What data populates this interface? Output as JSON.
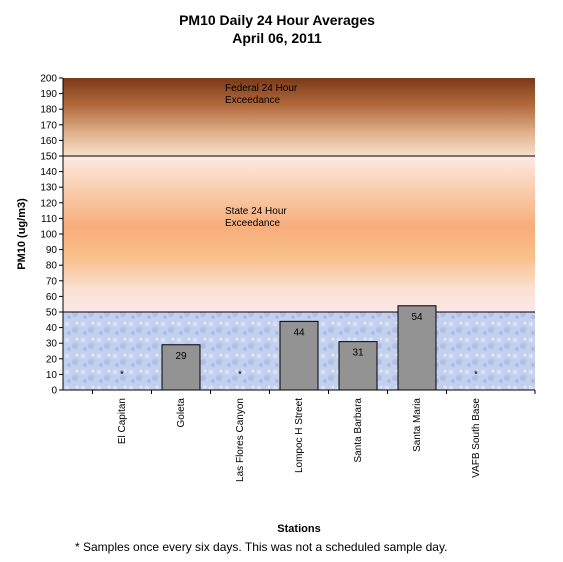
{
  "chart_data": {
    "type": "bar",
    "title": "PM10 Daily 24 Hour Averages",
    "subtitle": "April 06, 2011",
    "xlabel": "Stations",
    "ylabel": "PM10 (ug/m3)",
    "ylim": [
      0,
      200
    ],
    "y_ticks": [
      0,
      10,
      20,
      30,
      40,
      50,
      60,
      70,
      80,
      90,
      100,
      110,
      120,
      130,
      140,
      150,
      160,
      170,
      180,
      190,
      200
    ],
    "categories": [
      "El Capitan",
      "Goleta",
      "Las Flores Canyon",
      "Lompoc H Street",
      "Santa Barbara",
      "Santa Maria",
      "VAFB South Base"
    ],
    "values": [
      null,
      29,
      null,
      44,
      31,
      54,
      null
    ],
    "data_labels": [
      "*",
      "29",
      "*",
      "44",
      "31",
      "54",
      "*"
    ],
    "bar_color": "#939393",
    "bands": [
      {
        "label": "Federal 24 Hour Exceedance",
        "line1": "Federal 24 Hour",
        "line2": "Exceedance",
        "from": 150,
        "to": 200
      },
      {
        "label": "State 24 Hour Exceedance",
        "line1": "State 24 Hour",
        "line2": "Exceedance",
        "from": 50,
        "to": 150
      }
    ],
    "grid": false,
    "legend": "none",
    "footnote": "* Samples once every six days.  This was not a scheduled sample day."
  }
}
